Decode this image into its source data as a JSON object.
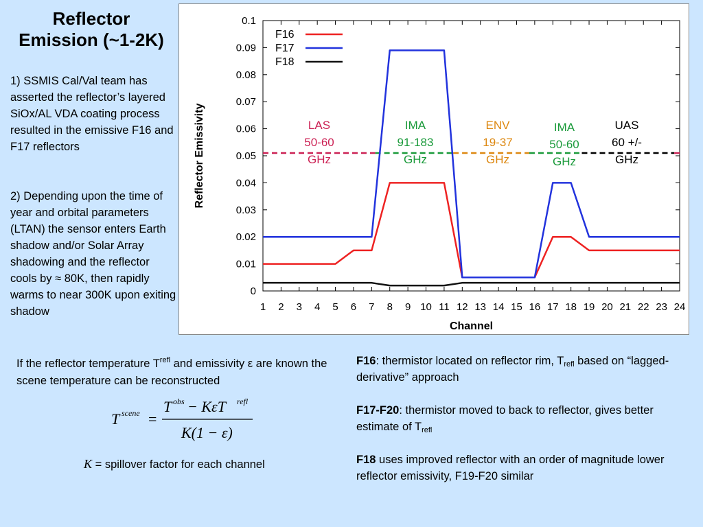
{
  "slide": {
    "title_line1": "Reflector",
    "title_line2": "Emission (~1-2K)",
    "para1": "1) SSMIS Cal/Val team has asserted  the reflector’s layered SiOx/AL VDA coating process resulted in the emissive F16 and F17 reflectors",
    "para2": "2) Depending upon the time of year and orbital parameters (LTAN)  the sensor enters Earth shadow and/or Solar Array shadowing and the reflector cools by ≈ 80K, then rapidly warms to near 300K upon exiting shadow",
    "recon_text_a": "If the reflector temperature T",
    "recon_text_sup": "refl",
    "recon_text_b": " and emissivity ε are known the scene temperature can be reconstructed",
    "formula": {
      "lhs": "T",
      "lhs_sup": "scene",
      "equals": "=",
      "num_a": "T",
      "num_a_sup": "obs",
      "num_b": " − KεT",
      "num_b_sup": "refl",
      "den": "K(1 − ε)"
    },
    "k_var": "K",
    "k_note": " = spillover factor for each channel",
    "right": [
      {
        "bold": "F16",
        "text_a": ": thermistor located on reflector rim, T",
        "sub": "refl",
        "text_b": " based on “lagged-derivative” approach"
      },
      {
        "bold": "F17-F20",
        "text_a": ": thermistor moved to back to reflector, gives better estimate of T",
        "sub": "refl",
        "text_b": ""
      },
      {
        "bold": "F18",
        "text_a": " uses improved reflector with an order of magnitude lower reflector emissivity, F19-F20 similar",
        "sub": "",
        "text_b": ""
      }
    ]
  },
  "chart_data": {
    "type": "line",
    "title": "",
    "xlabel": "Channel",
    "ylabel": "Reflector Emissivity",
    "x": [
      1,
      2,
      3,
      4,
      5,
      6,
      7,
      8,
      9,
      10,
      11,
      12,
      13,
      14,
      15,
      16,
      17,
      18,
      19,
      20,
      21,
      22,
      23,
      24
    ],
    "xlim": [
      1,
      24
    ],
    "ylim": [
      0,
      0.1
    ],
    "yticks": [
      "0",
      "0.01",
      "0.02",
      "0.03",
      "0.04",
      "0.05",
      "0.06",
      "0.07",
      "0.08",
      "0.09",
      "0.1"
    ],
    "legend_position": "top-left",
    "series": [
      {
        "name": "F16",
        "color": "#ee2222",
        "values": [
          0.01,
          0.01,
          0.01,
          0.01,
          0.01,
          0.015,
          0.015,
          0.04,
          0.04,
          0.04,
          0.04,
          0.005,
          0.005,
          0.005,
          0.005,
          0.005,
          0.02,
          0.02,
          0.015,
          0.015,
          0.015,
          0.015,
          0.015,
          0.015
        ]
      },
      {
        "name": "F17",
        "color": "#2233dd",
        "values": [
          0.02,
          0.02,
          0.02,
          0.02,
          0.02,
          0.02,
          0.02,
          0.089,
          0.089,
          0.089,
          0.089,
          0.005,
          0.005,
          0.005,
          0.005,
          0.005,
          0.04,
          0.04,
          0.02,
          0.02,
          0.02,
          0.02,
          0.02,
          0.02
        ]
      },
      {
        "name": "F18",
        "color": "#111111",
        "values": [
          0.003,
          0.003,
          0.003,
          0.003,
          0.003,
          0.003,
          0.003,
          0.002,
          0.002,
          0.002,
          0.002,
          0.003,
          0.003,
          0.003,
          0.003,
          0.003,
          0.003,
          0.003,
          0.003,
          0.003,
          0.003,
          0.003,
          0.003,
          0.003
        ]
      }
    ],
    "reference_line_y": 0.051,
    "bands": [
      {
        "lines": [
          "LAS",
          "50-60",
          "GHz"
        ],
        "color": "#cc2255",
        "x_from": 1,
        "x_to": 7.2
      },
      {
        "lines": [
          "IMA",
          "91-183",
          "GHz"
        ],
        "color": "#1a9a3a",
        "x_from": 7.2,
        "x_to": 11.5
      },
      {
        "lines": [
          "ENV",
          "19-37",
          "GHz"
        ],
        "color": "#dd8811",
        "x_from": 11.5,
        "x_to": 15.7
      },
      {
        "lines": [
          "IMA",
          "50-60",
          "GHz"
        ],
        "color": "#1a9a3a",
        "x_from": 15.7,
        "x_to": 18.6
      },
      {
        "lines": [
          "UAS",
          "60 +/-",
          "GHz"
        ],
        "color": "#000000",
        "x_from": 18.6,
        "x_to": 23.7
      },
      {
        "lines": [],
        "color": "#cc2255",
        "x_from": 23.7,
        "x_to": 24
      }
    ]
  }
}
